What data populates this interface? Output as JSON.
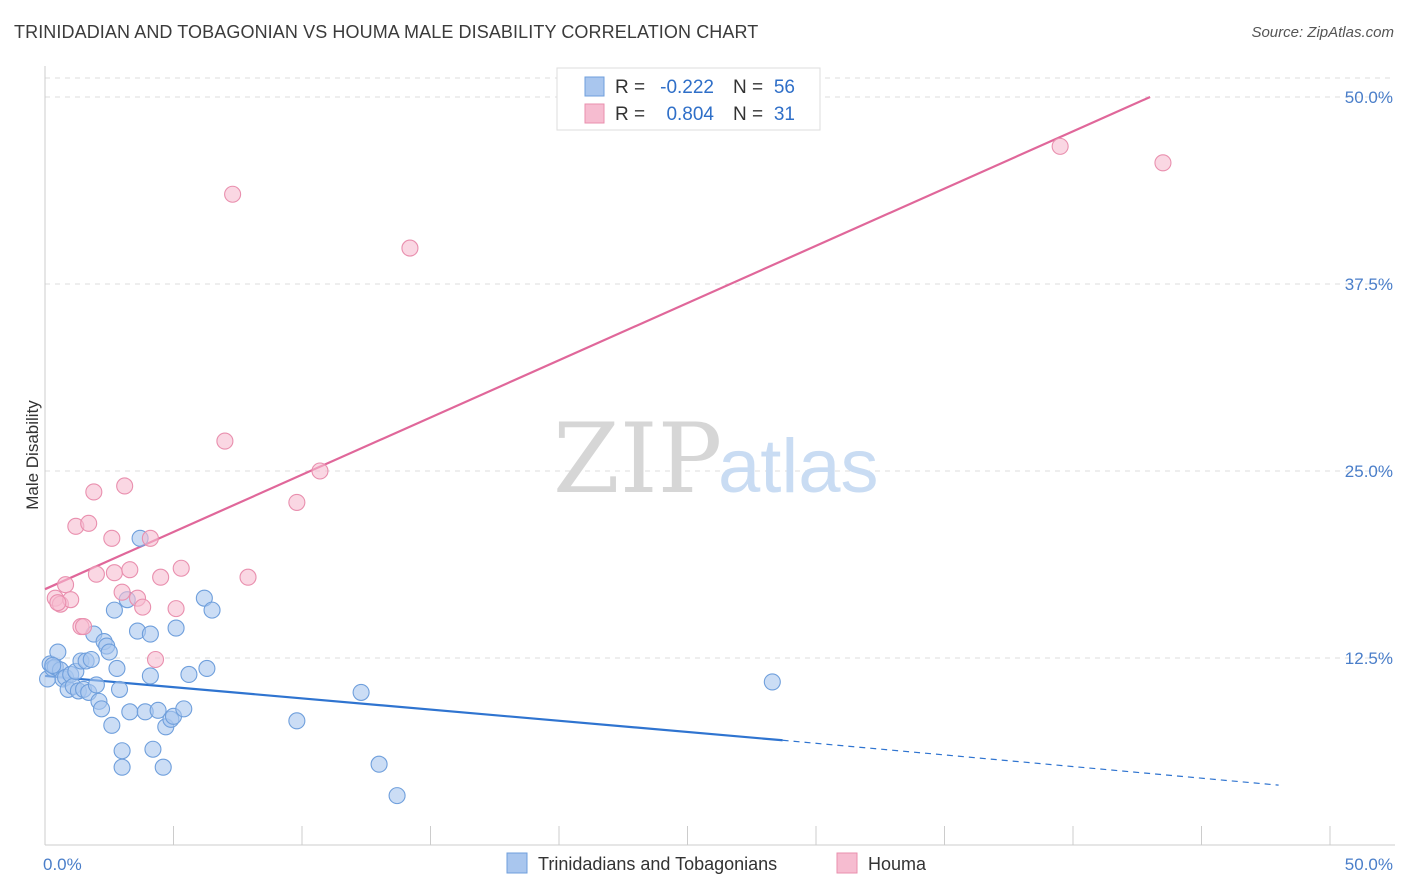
{
  "title": "TRINIDADIAN AND TOBAGONIAN VS HOUMA MALE DISABILITY CORRELATION CHART",
  "source": "Source: ZipAtlas.com",
  "watermark": {
    "zip": "ZIP",
    "atlas": "atlas"
  },
  "colors": {
    "blue_fill": "#a9c6ee",
    "blue_stroke": "#6f9fdc",
    "blue_line": "#2f74d0",
    "pink_fill": "#f6bcd0",
    "pink_stroke": "#e98fae",
    "pink_line": "#e0679a",
    "grid": "#dddddd",
    "tick_text": "#4a7ec9"
  },
  "legend": {
    "rows": [
      {
        "r_label": "R =",
        "r_value": "-0.222",
        "n_label": "N =",
        "n_value": "56"
      },
      {
        "r_label": "R =",
        "r_value": "0.804",
        "n_label": "N =",
        "n_value": "31"
      }
    ]
  },
  "chart_data": {
    "type": "scatter",
    "xlabel": "",
    "ylabel": "Male Disability",
    "xlim": [
      0,
      50
    ],
    "ylim": [
      0,
      50
    ],
    "x_tick_labels": [
      "0.0%",
      "50.0%"
    ],
    "y_ticks": [
      12.5,
      25.0,
      37.5,
      50.0
    ],
    "y_tick_labels": [
      "12.5%",
      "25.0%",
      "37.5%",
      "50.0%"
    ],
    "grid": true,
    "legend_position": "top-center",
    "series": [
      {
        "name": "Trinidadians and Tobagonians",
        "color": "#a9c6ee",
        "points": [
          [
            0.1,
            11.1
          ],
          [
            0.2,
            12.1
          ],
          [
            0.3,
            11.8
          ],
          [
            0.4,
            11.9
          ],
          [
            0.5,
            12.9
          ],
          [
            0.6,
            11.7
          ],
          [
            0.7,
            11.1
          ],
          [
            0.8,
            11.2
          ],
          [
            0.9,
            10.4
          ],
          [
            1.0,
            11.4
          ],
          [
            1.1,
            10.6
          ],
          [
            1.2,
            11.6
          ],
          [
            1.3,
            10.3
          ],
          [
            1.4,
            12.3
          ],
          [
            1.5,
            10.4
          ],
          [
            1.6,
            12.3
          ],
          [
            1.7,
            10.2
          ],
          [
            1.8,
            12.4
          ],
          [
            1.9,
            14.1
          ],
          [
            2.0,
            10.7
          ],
          [
            2.1,
            9.6
          ],
          [
            2.2,
            9.1
          ],
          [
            2.3,
            13.6
          ],
          [
            2.4,
            13.3
          ],
          [
            2.5,
            12.9
          ],
          [
            2.6,
            8.0
          ],
          [
            2.7,
            15.7
          ],
          [
            2.8,
            11.8
          ],
          [
            2.9,
            10.4
          ],
          [
            3.0,
            6.3
          ],
          [
            3.0,
            5.2
          ],
          [
            3.2,
            16.4
          ],
          [
            3.3,
            8.9
          ],
          [
            3.6,
            14.3
          ],
          [
            3.7,
            20.5
          ],
          [
            3.9,
            8.9
          ],
          [
            4.1,
            11.3
          ],
          [
            4.1,
            14.1
          ],
          [
            4.2,
            6.4
          ],
          [
            4.4,
            9.0
          ],
          [
            4.6,
            5.2
          ],
          [
            4.7,
            7.9
          ],
          [
            4.9,
            8.4
          ],
          [
            5.0,
            8.6
          ],
          [
            5.1,
            14.5
          ],
          [
            5.4,
            9.1
          ],
          [
            5.6,
            11.4
          ],
          [
            6.2,
            16.5
          ],
          [
            6.3,
            11.8
          ],
          [
            6.5,
            15.7
          ],
          [
            9.8,
            8.3
          ],
          [
            12.3,
            10.2
          ],
          [
            13.0,
            5.4
          ],
          [
            13.7,
            3.3
          ],
          [
            28.3,
            10.9
          ],
          [
            0.3,
            12.0
          ]
        ]
      },
      {
        "name": "Houma",
        "color": "#f6bcd0",
        "points": [
          [
            0.4,
            16.5
          ],
          [
            0.6,
            16.1
          ],
          [
            0.8,
            17.4
          ],
          [
            1.0,
            16.4
          ],
          [
            1.2,
            21.3
          ],
          [
            1.4,
            14.6
          ],
          [
            1.5,
            14.6
          ],
          [
            1.7,
            21.5
          ],
          [
            1.9,
            23.6
          ],
          [
            2.0,
            18.1
          ],
          [
            2.6,
            20.5
          ],
          [
            2.7,
            18.2
          ],
          [
            3.0,
            16.9
          ],
          [
            3.1,
            24.0
          ],
          [
            3.3,
            18.4
          ],
          [
            3.6,
            16.5
          ],
          [
            3.8,
            15.9
          ],
          [
            4.1,
            20.5
          ],
          [
            4.3,
            12.4
          ],
          [
            4.5,
            17.9
          ],
          [
            5.1,
            15.8
          ],
          [
            5.3,
            18.5
          ],
          [
            7.0,
            27.0
          ],
          [
            7.3,
            43.5
          ],
          [
            7.9,
            17.9
          ],
          [
            9.8,
            22.9
          ],
          [
            10.7,
            25.0
          ],
          [
            14.2,
            39.9
          ],
          [
            39.5,
            46.7
          ],
          [
            43.5,
            45.6
          ],
          [
            0.5,
            16.2
          ]
        ]
      }
    ],
    "trend_lines": [
      {
        "series": "Trinidadians and Tobagonians",
        "from": [
          0,
          11.3
        ],
        "to": [
          28.7,
          7.0
        ],
        "dashed_to": [
          48.0,
          4.0
        ]
      },
      {
        "series": "Houma",
        "from": [
          0,
          17.1
        ],
        "to": [
          43.0,
          50.0
        ]
      }
    ]
  },
  "bottom_legend": [
    {
      "label": "Trinidadians and Tobagonians"
    },
    {
      "label": "Houma"
    }
  ]
}
